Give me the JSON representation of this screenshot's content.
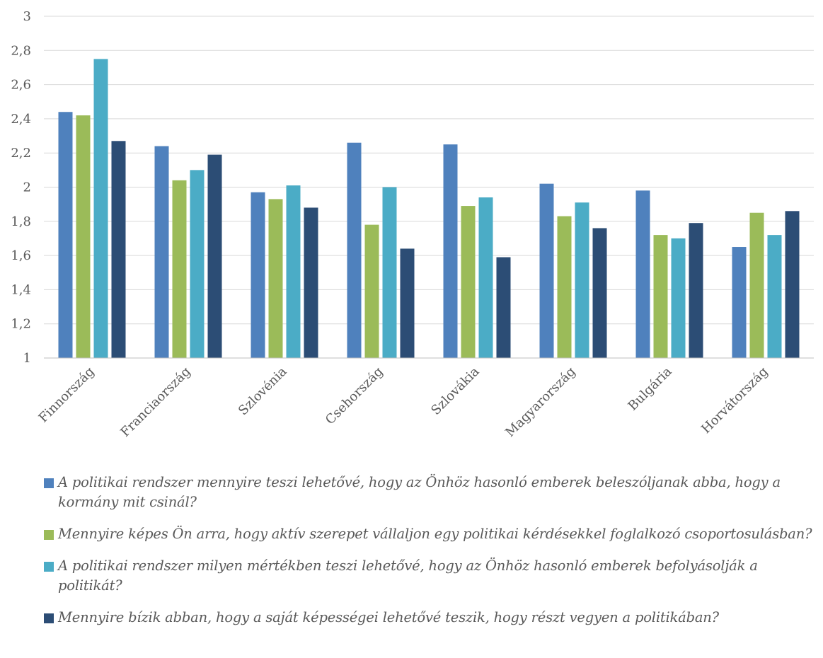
{
  "chart_data": {
    "type": "bar",
    "categories": [
      "Finnország",
      "Franciaország",
      "Szlovénia",
      "Csehország",
      "Szlovákia",
      "Magyarország",
      "Bulgária",
      "Horvátország"
    ],
    "series": [
      {
        "name": "A politikai rendszer mennyire teszi lehetővé, hogy az Önhöz hasonló emberek beleszóljanak abba, hogy a kormány mit csinál?",
        "color": "#4f81bd",
        "values": [
          2.44,
          2.24,
          1.97,
          2.26,
          2.25,
          2.02,
          1.98,
          1.65
        ]
      },
      {
        "name": "Mennyire képes Ön arra, hogy aktív szerepet vállaljon egy politikai kérdésekkel foglalkozó csoportosulásban?",
        "color": "#9bbb59",
        "values": [
          2.42,
          2.04,
          1.93,
          1.78,
          1.89,
          1.83,
          1.72,
          1.85
        ]
      },
      {
        "name": "A politikai rendszer milyen mértékben teszi lehetővé, hogy az Önhöz hasonló emberek befolyásolják a politikát?",
        "color": "#4bacc6",
        "values": [
          2.75,
          2.1,
          2.01,
          2.0,
          1.94,
          1.91,
          1.7,
          1.72
        ]
      },
      {
        "name": "Mennyire bízik abban, hogy a saját képességei lehetővé teszik, hogy részt vegyen a politikában?",
        "color": "#2c4d75",
        "values": [
          2.27,
          2.19,
          1.88,
          1.64,
          1.59,
          1.76,
          1.79,
          1.86
        ]
      }
    ],
    "ylim": [
      1,
      3
    ],
    "yticks": [
      "1",
      "1,2",
      "1,4",
      "1,6",
      "1,8",
      "2",
      "2,2",
      "2,4",
      "2,6",
      "2,8",
      "3"
    ],
    "grid": true,
    "legend_position": "bottom"
  }
}
